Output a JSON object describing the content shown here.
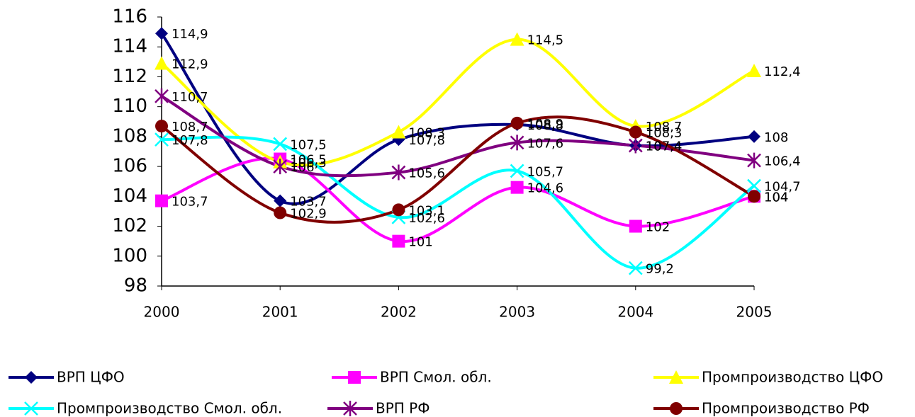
{
  "chart_data": {
    "type": "line",
    "categories": [
      "2000",
      "2001",
      "2002",
      "2003",
      "2004",
      "2005"
    ],
    "ylim": [
      98,
      116
    ],
    "yticks": [
      98,
      100,
      102,
      104,
      106,
      108,
      110,
      112,
      114,
      116
    ],
    "smooth": true,
    "legend": "bottom",
    "series": [
      {
        "name": "ВРП ЦФО",
        "color": "#000080",
        "marker": "diamond",
        "values": [
          114.9,
          103.7,
          107.8,
          108.8,
          107.4,
          108
        ],
        "value_labels": [
          "114,9",
          "103,7",
          "107,8",
          "108,8",
          "107,4",
          "108"
        ]
      },
      {
        "name": "ВРП Смол. обл.",
        "color": "#ff00ff",
        "marker": "square",
        "values": [
          103.7,
          106.5,
          101,
          104.6,
          102,
          104
        ],
        "value_labels": [
          "103,7",
          "106,5",
          "101",
          "104,6",
          "102",
          "104"
        ]
      },
      {
        "name": "Промпроизводство ЦФО",
        "color": "#ffff00",
        "marker": "triangle",
        "values": [
          112.9,
          106.3,
          108.3,
          114.5,
          108.7,
          112.4
        ],
        "value_labels": [
          "112,9",
          "106,3",
          "108,3",
          "114,5",
          "108,7",
          "112,4"
        ]
      },
      {
        "name": "Промпроизводство Смол. обл.",
        "color": "#00ffff",
        "marker": "x",
        "values": [
          107.8,
          107.5,
          102.6,
          105.7,
          99.2,
          104.7
        ],
        "value_labels": [
          "107,8",
          "107,5",
          "102,6",
          "105,7",
          "99,2",
          "104,7"
        ]
      },
      {
        "name": "ВРП РФ",
        "color": "#800080",
        "marker": "star",
        "values": [
          110.7,
          106,
          105.6,
          107.6,
          107.4,
          106.4
        ],
        "value_labels": [
          "110,7",
          "106",
          "105,6",
          "107,6",
          "107,4",
          "106,4"
        ]
      },
      {
        "name": "Промпроизводство РФ",
        "color": "#800000",
        "marker": "circle",
        "values": [
          108.7,
          102.9,
          103.1,
          108.9,
          108.3,
          104
        ],
        "value_labels": [
          "108,7",
          "102,9",
          "103,1",
          "108,9",
          "108,3",
          "104"
        ]
      }
    ]
  }
}
